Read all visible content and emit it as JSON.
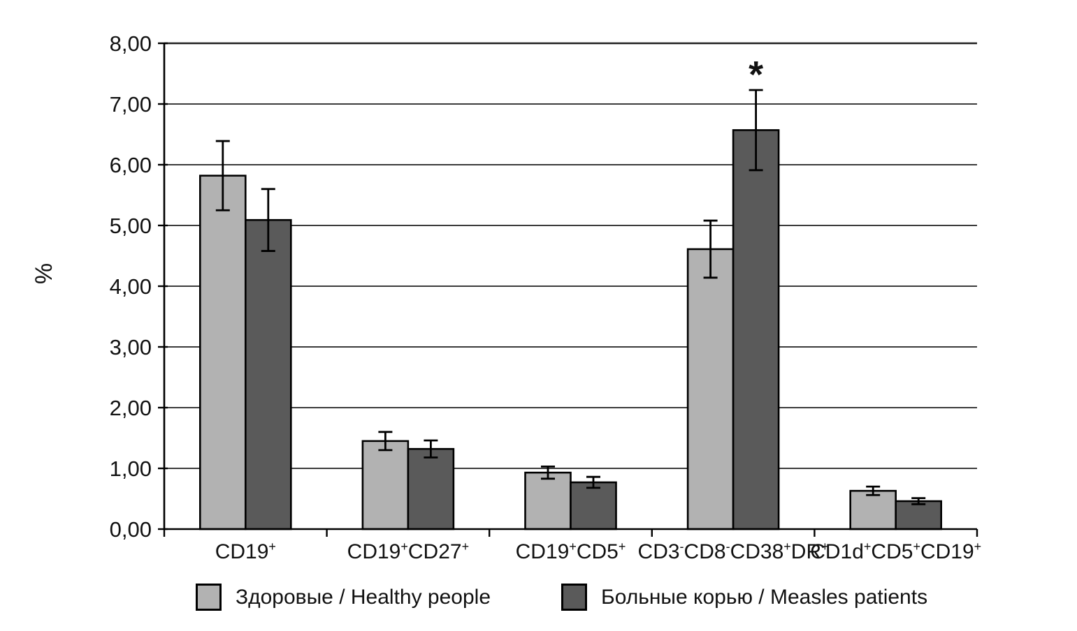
{
  "chart_data": {
    "type": "bar",
    "title": "",
    "xlabel": "",
    "ylabel": "%",
    "categories": [
      "CD19+",
      "CD19+CD27+",
      "CD19+CD5+",
      "CD3-CD8-CD38+DR+",
      "CD1d+CD5+CD19+"
    ],
    "superscript_chars": "+-",
    "series": [
      {
        "name": "Здоровые / Healthy people",
        "color": "#b2b2b2",
        "values": [
          5.82,
          1.45,
          0.93,
          4.61,
          0.63
        ],
        "errors": [
          0.57,
          0.15,
          0.1,
          0.47,
          0.07
        ]
      },
      {
        "name": "Больные корью / Measles patients",
        "color": "#5a5a5a",
        "values": [
          5.09,
          1.32,
          0.77,
          6.57,
          0.46
        ],
        "errors": [
          0.51,
          0.14,
          0.09,
          0.66,
          0.05
        ]
      }
    ],
    "ylim": [
      0,
      8
    ],
    "y_step": 1,
    "y_tick_labels": [
      "0,00",
      "1,00",
      "2,00",
      "3,00",
      "4,00",
      "5,00",
      "6,00",
      "7,00",
      "8,00"
    ],
    "grid": true,
    "legend_position": "bottom",
    "annotations": [
      {
        "text": "*",
        "category_index": 3,
        "series_index": 1
      }
    ]
  },
  "colors": {
    "axis": "#000000",
    "gridline": "#1f1f1f",
    "text": "#111111"
  }
}
